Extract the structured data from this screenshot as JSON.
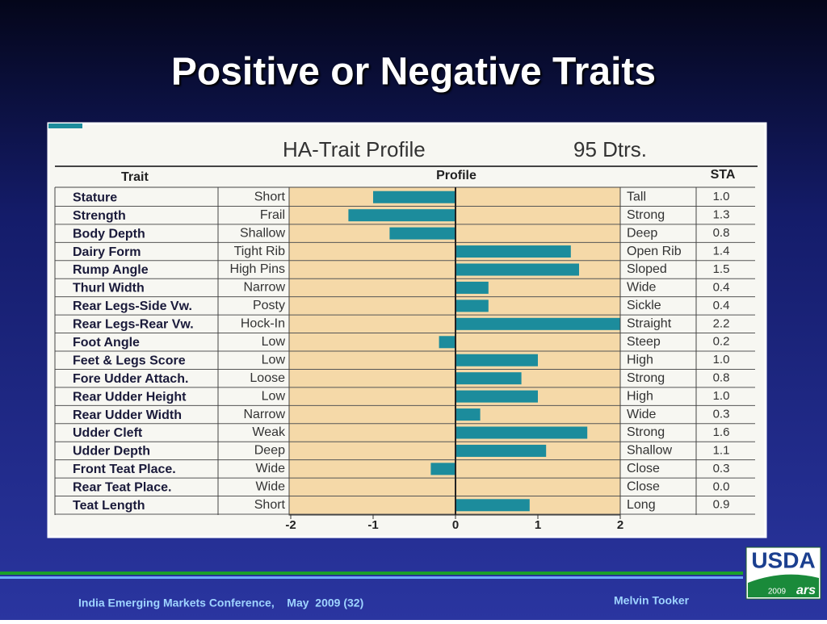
{
  "title": "Positive or Negative Traits",
  "chart_data": {
    "type": "bar",
    "orientation": "horizontal",
    "title": "HA-Trait Profile",
    "subtitle": "95 Dtrs.",
    "headers": {
      "trait": "Trait",
      "profile": "Profile",
      "sta": "STA"
    },
    "categories": [
      "Stature",
      "Strength",
      "Body Depth",
      "Dairy Form",
      "Rump Angle",
      "Thurl Width",
      "Rear Legs-Side Vw.",
      "Rear Legs-Rear Vw.",
      "Foot Angle",
      "Feet & Legs Score",
      "Fore Udder Attach.",
      "Rear Udder Height",
      "Rear Udder Width",
      "Udder Cleft",
      "Udder Depth",
      "Front Teat Place.",
      "Rear Teat Place.",
      "Teat Length"
    ],
    "negative_labels": [
      "Short",
      "Frail",
      "Shallow",
      "Tight Rib",
      "High Pins",
      "Narrow",
      "Posty",
      "Hock-In",
      "Low",
      "Low",
      "Loose",
      "Low",
      "Narrow",
      "Weak",
      "Deep",
      "Wide",
      "Wide",
      "Short"
    ],
    "positive_labels": [
      "Tall",
      "Strong",
      "Deep",
      "Open Rib",
      "Sloped",
      "Wide",
      "Sickle",
      "Straight",
      "Steep",
      "High",
      "Strong",
      "High",
      "Wide",
      "Strong",
      "Shallow",
      "Close",
      "Close",
      "Long"
    ],
    "values": [
      -1.0,
      -1.3,
      -0.8,
      1.4,
      1.5,
      0.4,
      0.4,
      2.2,
      -0.2,
      1.0,
      0.8,
      1.0,
      0.3,
      1.6,
      1.1,
      -0.3,
      0.0,
      0.9
    ],
    "sta": [
      "1.0",
      "1.3",
      "0.8",
      "1.4",
      "1.5",
      "0.4",
      "0.4",
      "2.2",
      "0.2",
      "1.0",
      "0.8",
      "1.0",
      "0.3",
      "1.6",
      "1.1",
      "0.3",
      "0.0",
      "0.9"
    ],
    "color": "#1c8c9c",
    "xlim": [
      -2,
      2
    ],
    "xticks": [
      -2,
      -1,
      0,
      1,
      2
    ]
  },
  "footer": {
    "conference": "India Emerging Markets Conference,    May  2009 (32)",
    "author": "Melvin Tooker"
  },
  "logo": {
    "name": "USDA",
    "year": "2009",
    "agency": "ars"
  }
}
